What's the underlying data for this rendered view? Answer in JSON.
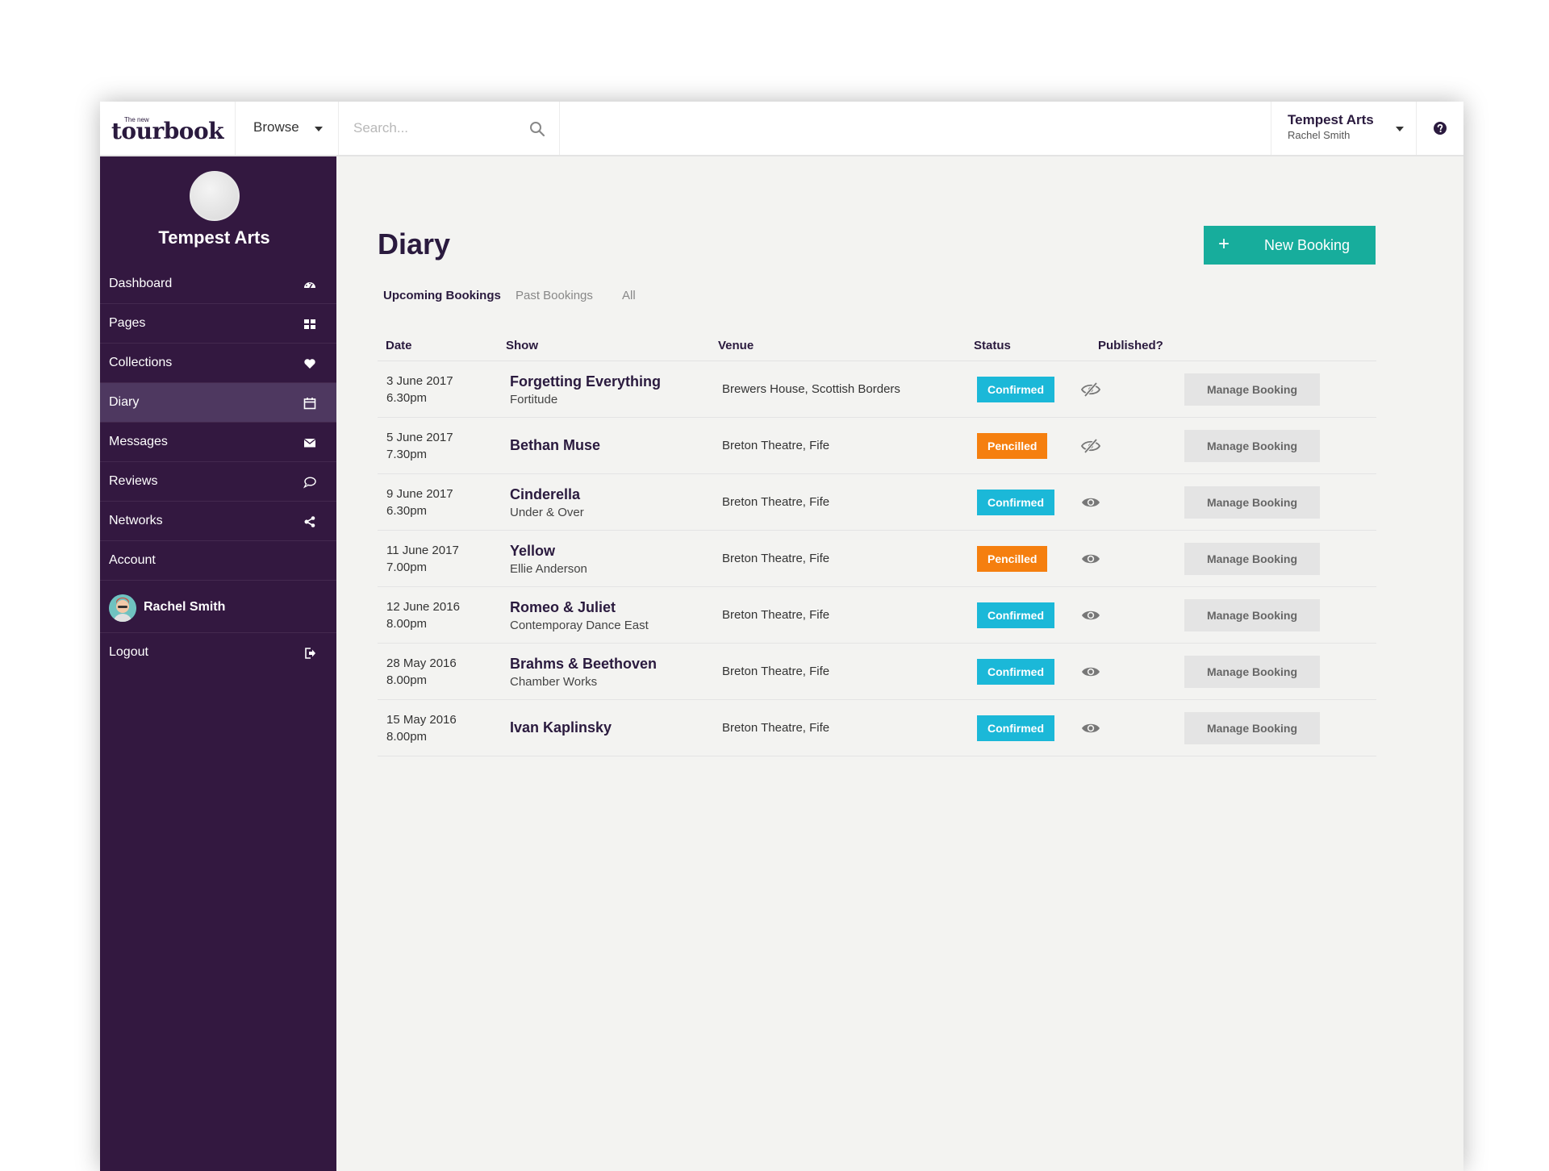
{
  "app": {
    "logo_small": "The new",
    "logo": "tourbook",
    "browse_label": "Browse",
    "search_placeholder": "Search...",
    "account": {
      "org": "Tempest Arts",
      "user": "Rachel Smith"
    }
  },
  "sidebar": {
    "profile_name": "Tempest Arts",
    "items": [
      {
        "label": "Dashboard",
        "icon": "dashboard-icon"
      },
      {
        "label": "Pages",
        "icon": "grid-icon"
      },
      {
        "label": "Collections",
        "icon": "heart-icon"
      },
      {
        "label": "Diary",
        "icon": "calendar-icon",
        "active": true
      },
      {
        "label": "Messages",
        "icon": "envelope-icon"
      },
      {
        "label": "Reviews",
        "icon": "speech-bubble-icon"
      },
      {
        "label": "Networks",
        "icon": "share-icon"
      },
      {
        "label": "Account",
        "icon": ""
      }
    ],
    "user_name": "Rachel Smith",
    "logout_label": "Logout"
  },
  "main": {
    "title": "Diary",
    "new_booking_label": "New Booking",
    "tabs": [
      "Upcoming Bookings",
      "Past Bookings",
      "All"
    ],
    "active_tab": "Upcoming Bookings",
    "columns": [
      "Date",
      "Show",
      "Venue",
      "Status",
      "Published?"
    ],
    "manage_label": "Manage Booking",
    "rows": [
      {
        "date": "3 June 2017",
        "time": "6.30pm",
        "show": "Forgetting Everything",
        "company": "Fortitude",
        "venue": "Brewers House, Scottish Borders",
        "status": "Confirmed",
        "published": false
      },
      {
        "date": "5 June 2017",
        "time": "7.30pm",
        "show": "Bethan Muse",
        "company": "",
        "venue": "Breton Theatre, Fife",
        "status": "Pencilled",
        "published": false
      },
      {
        "date": "9 June 2017",
        "time": "6.30pm",
        "show": "Cinderella",
        "company": "Under & Over",
        "venue": "Breton Theatre, Fife",
        "status": "Confirmed",
        "published": true
      },
      {
        "date": "11 June 2017",
        "time": "7.00pm",
        "show": "Yellow",
        "company": "Ellie Anderson",
        "venue": "Breton Theatre, Fife",
        "status": "Pencilled",
        "published": true
      },
      {
        "date": "12 June 2016",
        "time": "8.00pm",
        "show": "Romeo & Juliet",
        "company": "Contemporay Dance East",
        "venue": "Breton Theatre, Fife",
        "status": "Confirmed",
        "published": true
      },
      {
        "date": "28 May 2016",
        "time": "8.00pm",
        "show": "Brahms & Beethoven",
        "company": "Chamber Works",
        "venue": "Breton Theatre, Fife",
        "status": "Confirmed",
        "published": true
      },
      {
        "date": "15 May 2016",
        "time": "8.00pm",
        "show": "Ivan Kaplinsky",
        "company": "",
        "venue": "Breton Theatre, Fife",
        "status": "Confirmed",
        "published": true
      }
    ]
  },
  "colors": {
    "sidebar": "#331840",
    "sidebar_active": "#4e3860",
    "accent": "#17ad9c",
    "confirmed": "#1bb8d8",
    "pencilled": "#f57f0f",
    "text": "#2a1a3e"
  }
}
